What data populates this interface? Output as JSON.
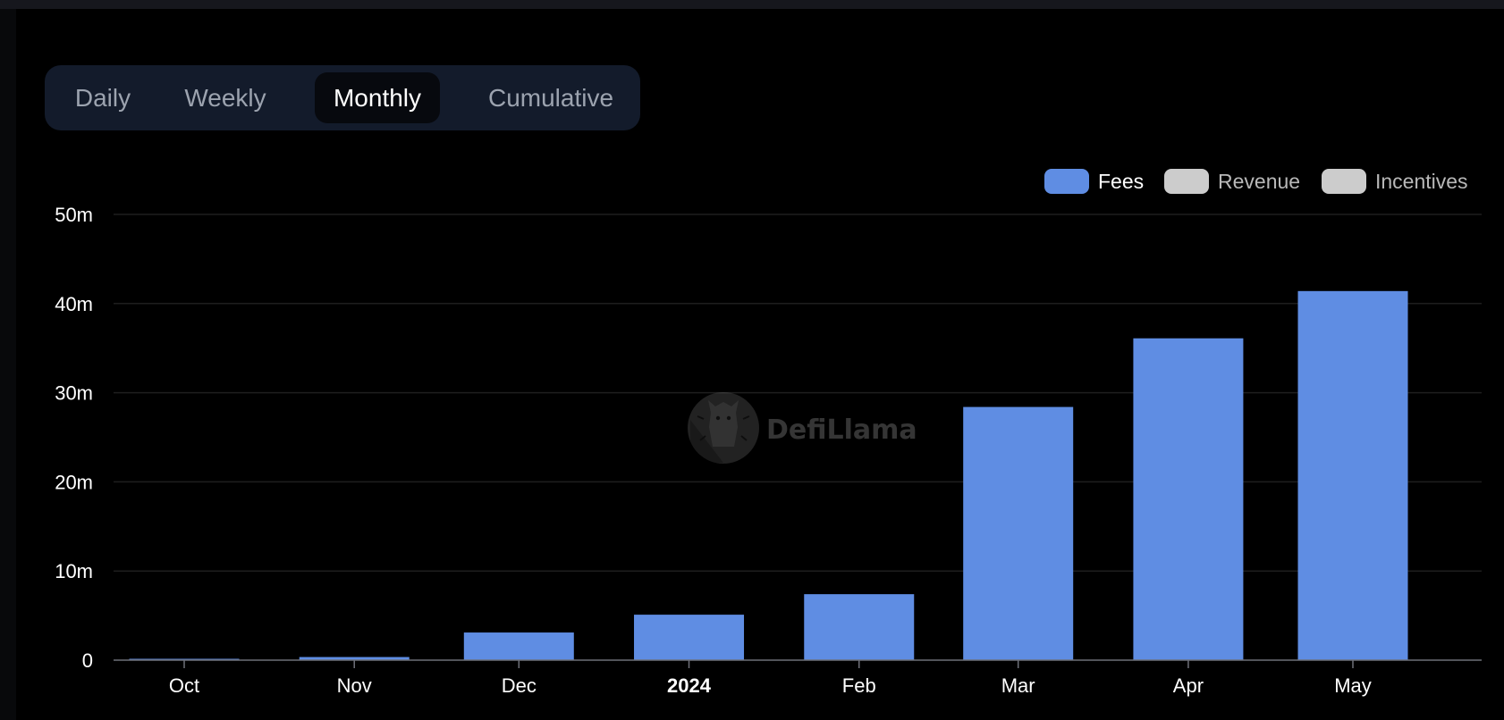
{
  "tabs": [
    {
      "label": "Daily",
      "active": false
    },
    {
      "label": "Weekly",
      "active": false
    },
    {
      "label": "Monthly",
      "active": true
    },
    {
      "label": "Cumulative",
      "active": false
    }
  ],
  "legend": [
    {
      "label": "Fees",
      "color": "#5f8de3",
      "text_color": "#ffffff"
    },
    {
      "label": "Revenue",
      "color": "#cccccc",
      "text_color": "#b8b8b8"
    },
    {
      "label": "Incentives",
      "color": "#cccccc",
      "text_color": "#b8b8b8"
    }
  ],
  "watermark": {
    "text": "DefiLlama",
    "icon": "llama-logo-icon"
  },
  "colors": {
    "background": "#000000",
    "bar": "#5f8de3",
    "grid": "#1e1e1e",
    "axis_text": "#ffffff",
    "tab_bar": "#131b2b"
  },
  "chart_data": {
    "type": "bar",
    "categories": [
      "Oct",
      "Nov",
      "Dec",
      "2024",
      "Feb",
      "Mar",
      "Apr",
      "May"
    ],
    "bold_categories": [
      "2024"
    ],
    "series": [
      {
        "name": "Fees",
        "values": [
          0.15,
          0.35,
          3.1,
          5.1,
          7.4,
          28.4,
          36.1,
          41.4
        ]
      }
    ],
    "unit": "m",
    "ylim": [
      0,
      50
    ],
    "yticks": [
      0,
      10,
      20,
      30,
      40,
      50
    ],
    "ytick_labels": [
      "0",
      "10m",
      "20m",
      "30m",
      "40m",
      "50m"
    ],
    "grid": true,
    "legend_position": "top-right"
  }
}
